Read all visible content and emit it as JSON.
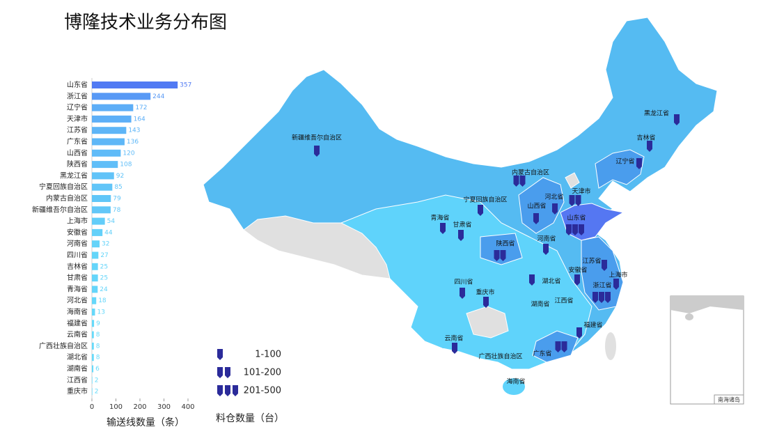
{
  "title": "博隆技术业务分布图",
  "chart_data": [
    {
      "type": "hbar",
      "categories": [
        "山东省",
        "浙江省",
        "辽宁省",
        "天津市",
        "江苏省",
        "广东省",
        "山西省",
        "陕西省",
        "黑龙江省",
        "宁夏回族自治区",
        "内蒙古自治区",
        "新疆维吾尔自治区",
        "上海市",
        "安徽省",
        "河南省",
        "四川省",
        "吉林省",
        "甘肃省",
        "青海省",
        "河北省",
        "海南省",
        "福建省",
        "云南省",
        "广西壮族自治区",
        "湖北省",
        "湖南省",
        "江西省",
        "重庆市"
      ],
      "values": [
        357,
        244,
        172,
        164,
        143,
        136,
        120,
        108,
        92,
        85,
        79,
        78,
        54,
        44,
        32,
        27,
        25,
        25,
        24,
        18,
        13,
        9,
        8,
        8,
        8,
        6,
        2,
        2
      ],
      "color_range": [
        "#66dcfa",
        "#4f6ef2"
      ],
      "xlim": [
        0,
        400
      ],
      "xticks": [
        0,
        100,
        200,
        300,
        400
      ],
      "xlabel": "输送线数量（条）"
    },
    {
      "type": "map",
      "regions": [
        {
          "name": "新疆维吾尔自治区",
          "pins": 1
        },
        {
          "name": "黑龙江省",
          "pins": 1
        },
        {
          "name": "吉林省",
          "pins": 1
        },
        {
          "name": "辽宁省",
          "pins": 1
        },
        {
          "name": "内蒙古自治区",
          "pins": 2
        },
        {
          "name": "天津市",
          "pins": 2
        },
        {
          "name": "河北省",
          "pins": 1
        },
        {
          "name": "山西省",
          "pins": 1
        },
        {
          "name": "山东省",
          "pins": 3
        },
        {
          "name": "宁夏回族自治区",
          "pins": 1
        },
        {
          "name": "青海省",
          "pins": 1
        },
        {
          "name": "甘肃省",
          "pins": 1
        },
        {
          "name": "陕西省",
          "pins": 2
        },
        {
          "name": "河南省",
          "pins": 1
        },
        {
          "name": "江苏省",
          "pins": 1
        },
        {
          "name": "安徽省",
          "pins": 1
        },
        {
          "name": "上海市",
          "pins": 1
        },
        {
          "name": "浙江省",
          "pins": 3
        },
        {
          "name": "湖北省",
          "pins": 1
        },
        {
          "name": "四川省",
          "pins": 1
        },
        {
          "name": "重庆市",
          "pins": 1
        },
        {
          "name": "湖南省",
          "pins": 0
        },
        {
          "name": "江西省",
          "pins": 0
        },
        {
          "name": "福建省",
          "pins": 1
        },
        {
          "name": "广东省",
          "pins": 2
        },
        {
          "name": "广西壮族自治区",
          "pins": 0
        },
        {
          "name": "云南省",
          "pins": 1
        },
        {
          "name": "海南省",
          "pins": 0
        }
      ],
      "legend": {
        "title": "料仓数量（台）",
        "items": [
          {
            "label": "1-100",
            "pins": 1
          },
          {
            "label": "101-200",
            "pins": 2
          },
          {
            "label": "201-500",
            "pins": 3
          }
        ]
      },
      "pin_color": "#2b2b9a",
      "inset_label": "南海诸岛"
    }
  ]
}
